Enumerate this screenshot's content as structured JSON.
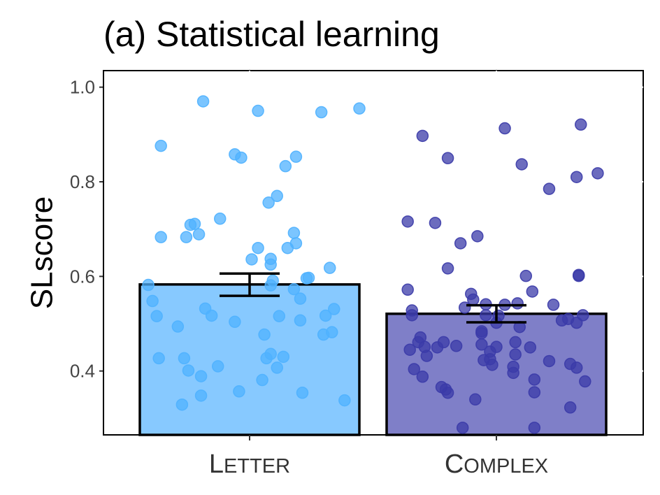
{
  "chart_data": {
    "type": "bar",
    "title": "(a) Statistical learning",
    "ylabel": "SLscore",
    "xlabel": "",
    "ylim": [
      0.265,
      1.035
    ],
    "yticks": [
      0.4,
      0.6,
      0.8,
      1.0
    ],
    "ytick_labels": [
      "0.4",
      "0.6",
      "0.8",
      "1.0"
    ],
    "grid": false,
    "categories": [
      "Letter",
      "Complex"
    ],
    "series": [
      {
        "category": "Letter",
        "mean": 0.583,
        "error_low": 0.559,
        "error_high": 0.606,
        "bar_color": "#87c9ff",
        "point_color": "#4fb1ff",
        "points": [
          [
            -0.48,
            0.582
          ],
          [
            -0.46,
            0.548
          ],
          [
            -0.44,
            0.516
          ],
          [
            -0.43,
            0.427
          ],
          [
            -0.42,
            0.683
          ],
          [
            -0.42,
            0.876
          ],
          [
            -0.34,
            0.494
          ],
          [
            -0.32,
            0.329
          ],
          [
            -0.31,
            0.427
          ],
          [
            -0.3,
            0.683
          ],
          [
            -0.29,
            0.401
          ],
          [
            -0.28,
            0.709
          ],
          [
            -0.26,
            0.711
          ],
          [
            -0.24,
            0.689
          ],
          [
            -0.23,
            0.348
          ],
          [
            -0.23,
            0.389
          ],
          [
            -0.22,
            0.97
          ],
          [
            -0.21,
            0.532
          ],
          [
            -0.18,
            0.517
          ],
          [
            -0.15,
            0.41
          ],
          [
            -0.14,
            0.722
          ],
          [
            -0.07,
            0.858
          ],
          [
            -0.07,
            0.504
          ],
          [
            -0.05,
            0.357
          ],
          [
            -0.04,
            0.851
          ],
          [
            0.01,
            0.636
          ],
          [
            0.04,
            0.95
          ],
          [
            0.04,
            0.66
          ],
          [
            0.06,
            0.381
          ],
          [
            0.07,
            0.477
          ],
          [
            0.08,
            0.427
          ],
          [
            0.09,
            0.756
          ],
          [
            0.1,
            0.436
          ],
          [
            0.1,
            0.625
          ],
          [
            0.1,
            0.637
          ],
          [
            0.1,
            0.581
          ],
          [
            0.11,
            0.591
          ],
          [
            0.13,
            0.407
          ],
          [
            0.13,
            0.77
          ],
          [
            0.14,
            0.516
          ],
          [
            0.16,
            0.43
          ],
          [
            0.17,
            0.833
          ],
          [
            0.18,
            0.66
          ],
          [
            0.21,
            0.692
          ],
          [
            0.21,
            0.573
          ],
          [
            0.22,
            0.67
          ],
          [
            0.22,
            0.853
          ],
          [
            0.24,
            0.553
          ],
          [
            0.24,
            0.507
          ],
          [
            0.25,
            0.354
          ],
          [
            0.27,
            0.596
          ],
          [
            0.28,
            0.597
          ],
          [
            0.34,
            0.947
          ],
          [
            0.35,
            0.477
          ],
          [
            0.36,
            0.517
          ],
          [
            0.38,
            0.618
          ],
          [
            0.39,
            0.482
          ],
          [
            0.4,
            0.531
          ],
          [
            0.45,
            0.338
          ],
          [
            0.52,
            0.955
          ]
        ]
      },
      {
        "category": "Complex",
        "mean": 0.521,
        "error_low": 0.503,
        "error_high": 0.539,
        "bar_color": "#7f7fc8",
        "point_color": "#3b3ba8",
        "points": [
          [
            -0.42,
            0.572
          ],
          [
            -0.42,
            0.716
          ],
          [
            -0.41,
            0.445
          ],
          [
            -0.4,
            0.518
          ],
          [
            -0.4,
            0.528
          ],
          [
            -0.39,
            0.404
          ],
          [
            -0.37,
            0.461
          ],
          [
            -0.36,
            0.471
          ],
          [
            -0.35,
            0.388
          ],
          [
            -0.35,
            0.897
          ],
          [
            -0.34,
            0.451
          ],
          [
            -0.33,
            0.432
          ],
          [
            -0.29,
            0.713
          ],
          [
            -0.28,
            0.45
          ],
          [
            -0.26,
            0.366
          ],
          [
            -0.25,
            0.461
          ],
          [
            -0.24,
            0.361
          ],
          [
            -0.23,
            0.354
          ],
          [
            -0.23,
            0.617
          ],
          [
            -0.23,
            0.85
          ],
          [
            -0.19,
            0.453
          ],
          [
            -0.17,
            0.67
          ],
          [
            -0.16,
            0.28
          ],
          [
            -0.15,
            0.534
          ],
          [
            -0.12,
            0.563
          ],
          [
            -0.11,
            0.551
          ],
          [
            -0.1,
            0.34
          ],
          [
            -0.09,
            0.685
          ],
          [
            -0.07,
            0.48
          ],
          [
            -0.07,
            0.484
          ],
          [
            -0.07,
            0.456
          ],
          [
            -0.06,
            0.423
          ],
          [
            -0.05,
            0.518
          ],
          [
            -0.05,
            0.541
          ],
          [
            -0.03,
            0.441
          ],
          [
            -0.03,
            0.425
          ],
          [
            -0.02,
            0.413
          ],
          [
            0.0,
            0.451
          ],
          [
            0.0,
            0.502
          ],
          [
            0.01,
            0.517
          ],
          [
            0.04,
            0.913
          ],
          [
            0.04,
            0.54
          ],
          [
            0.08,
            0.409
          ],
          [
            0.08,
            0.396
          ],
          [
            0.09,
            0.461
          ],
          [
            0.09,
            0.435
          ],
          [
            0.1,
            0.543
          ],
          [
            0.11,
            0.493
          ],
          [
            0.12,
            0.837
          ],
          [
            0.14,
            0.601
          ],
          [
            0.16,
            0.45
          ],
          [
            0.17,
            0.568
          ],
          [
            0.18,
            0.382
          ],
          [
            0.18,
            0.355
          ],
          [
            0.18,
            0.28
          ],
          [
            0.25,
            0.785
          ],
          [
            0.25,
            0.421
          ],
          [
            0.27,
            0.54
          ],
          [
            0.31,
            0.507
          ],
          [
            0.34,
            0.51
          ],
          [
            0.35,
            0.415
          ],
          [
            0.35,
            0.323
          ],
          [
            0.38,
            0.502
          ],
          [
            0.38,
            0.407
          ],
          [
            0.38,
            0.81
          ],
          [
            0.39,
            0.601
          ],
          [
            0.39,
            0.603
          ],
          [
            0.4,
            0.921
          ],
          [
            0.41,
            0.518
          ],
          [
            0.42,
            0.378
          ],
          [
            0.48,
            0.818
          ]
        ]
      }
    ]
  }
}
